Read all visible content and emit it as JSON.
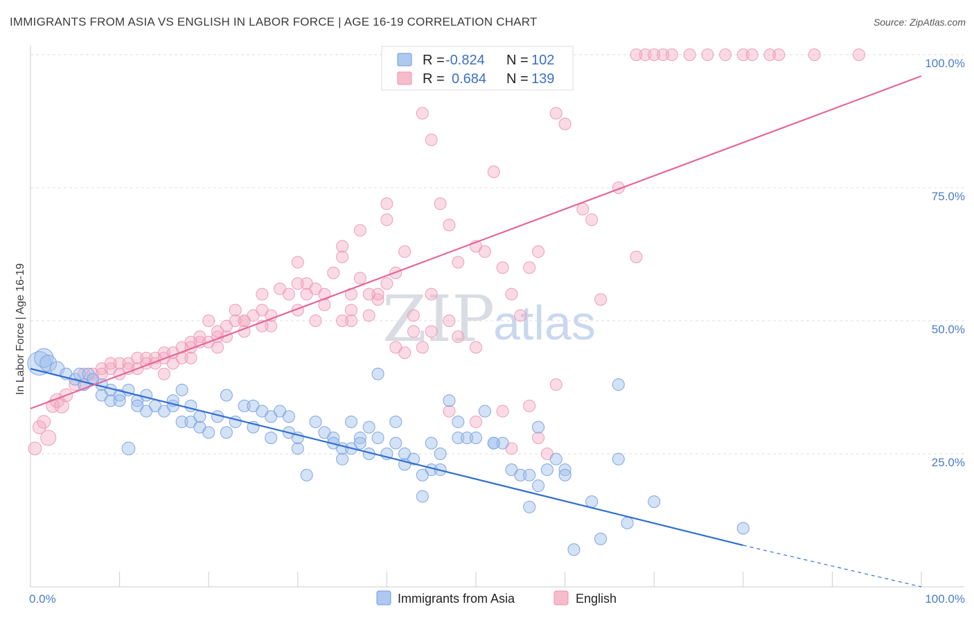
{
  "title": "IMMIGRANTS FROM ASIA VS ENGLISH IN LABOR FORCE | AGE 16-19 CORRELATION CHART",
  "source": "Source: ZipAtlas.com",
  "watermark": {
    "zip": "ZIP",
    "atlas": "atlas"
  },
  "legend": {
    "r_label": "R =",
    "n_label": "N =",
    "rows": [
      {
        "r": "-0.824",
        "n": "102",
        "color": "#aec8ef",
        "stroke": "#6d9ae0"
      },
      {
        "r": "0.684",
        "n": "139",
        "color": "#f7bccc",
        "stroke": "#ec8fab"
      }
    ]
  },
  "bottom_legend": [
    {
      "label": "Immigrants from Asia",
      "color": "#aec8ef",
      "stroke": "#6d9ae0"
    },
    {
      "label": "English",
      "color": "#f7bccc",
      "stroke": "#ec8fab"
    }
  ],
  "chart_data": {
    "type": "scatter",
    "xlabel": "",
    "ylabel": "In Labor Force | Age 16-19",
    "xlim": [
      0,
      100
    ],
    "ylim": [
      0,
      100
    ],
    "x_tick_labels": [
      "0.0%",
      "100.0%"
    ],
    "y_ticks": [
      25,
      50,
      75,
      100
    ],
    "y_tick_labels": [
      "25.0%",
      "50.0%",
      "75.0%",
      "100.0%"
    ],
    "grid": "horizontal dashed",
    "legend_position": "top-center",
    "series": [
      {
        "name": "Immigrants from Asia",
        "color": "#6d9ae0",
        "trend": {
          "x0": 0,
          "y0": 41.0,
          "x1": 80,
          "y1": 7.8,
          "dashed_to": 100,
          "dashed_y": 0
        },
        "points": [
          [
            1,
            42,
            2
          ],
          [
            1.5,
            43,
            1.6
          ],
          [
            2,
            42,
            1.4
          ],
          [
            3,
            41,
            1.2
          ],
          [
            4,
            40,
            1
          ],
          [
            5,
            39,
            1
          ],
          [
            6,
            38,
            1
          ],
          [
            5.5,
            40,
            1
          ],
          [
            6.5,
            40,
            1
          ],
          [
            7,
            39,
            1
          ],
          [
            8,
            38,
            1
          ],
          [
            8,
            36,
            1
          ],
          [
            9,
            35,
            1
          ],
          [
            10,
            36,
            1
          ],
          [
            10,
            35,
            1
          ],
          [
            11,
            37,
            1
          ],
          [
            12,
            35,
            1
          ],
          [
            12,
            34,
            1
          ],
          [
            13,
            33,
            1
          ],
          [
            14,
            34,
            1
          ],
          [
            11,
            26,
            1.1
          ],
          [
            15,
            33,
            1
          ],
          [
            16,
            34,
            1
          ],
          [
            16,
            35,
            1
          ],
          [
            17,
            37,
            1
          ],
          [
            17,
            31,
            1
          ],
          [
            18,
            34,
            1
          ],
          [
            18,
            31,
            1
          ],
          [
            19,
            30,
            1
          ],
          [
            19,
            32,
            1
          ],
          [
            20,
            29,
            1
          ],
          [
            21,
            32,
            1
          ],
          [
            22,
            36,
            1
          ],
          [
            22,
            29,
            1
          ],
          [
            23,
            31,
            1
          ],
          [
            24,
            34,
            1
          ],
          [
            25,
            34,
            1
          ],
          [
            25,
            30,
            1
          ],
          [
            26,
            33,
            1
          ],
          [
            27,
            28,
            1
          ],
          [
            27,
            32,
            1
          ],
          [
            28,
            33,
            1
          ],
          [
            29,
            32,
            1
          ],
          [
            29,
            29,
            1
          ],
          [
            30,
            26,
            1
          ],
          [
            30,
            28,
            1
          ],
          [
            31,
            21,
            1
          ],
          [
            32,
            31,
            1
          ],
          [
            33,
            29,
            1
          ],
          [
            34,
            28,
            1
          ],
          [
            34,
            27,
            1
          ],
          [
            35,
            24,
            1
          ],
          [
            35,
            26,
            1
          ],
          [
            36,
            31,
            1
          ],
          [
            37,
            28,
            1
          ],
          [
            37,
            27,
            1
          ],
          [
            38,
            25,
            1
          ],
          [
            38,
            30,
            1
          ],
          [
            39,
            28,
            1
          ],
          [
            39,
            40,
            1
          ],
          [
            40,
            25,
            1
          ],
          [
            41,
            27,
            1
          ],
          [
            42,
            25,
            1
          ],
          [
            42,
            23,
            1
          ],
          [
            43,
            24,
            1
          ],
          [
            44,
            17,
            1
          ],
          [
            45,
            22,
            1
          ],
          [
            46,
            22,
            1
          ],
          [
            46,
            25,
            1
          ],
          [
            47,
            35,
            1
          ],
          [
            48,
            28,
            1
          ],
          [
            48,
            31,
            1
          ],
          [
            49,
            28,
            1
          ],
          [
            50,
            28,
            1
          ],
          [
            51,
            33,
            1
          ],
          [
            52,
            27,
            1
          ],
          [
            53,
            27,
            1
          ],
          [
            54,
            22,
            1
          ],
          [
            55,
            21,
            1
          ],
          [
            56,
            21,
            1
          ],
          [
            56,
            15,
            1
          ],
          [
            57,
            19,
            1
          ],
          [
            57,
            30,
            1
          ],
          [
            58,
            22,
            1
          ],
          [
            59,
            24,
            1
          ],
          [
            60,
            22,
            1
          ],
          [
            60,
            21,
            1
          ],
          [
            61,
            7,
            1
          ],
          [
            63,
            16,
            1
          ],
          [
            64,
            9,
            1
          ],
          [
            66,
            24,
            1
          ],
          [
            67,
            12,
            1
          ],
          [
            70,
            16,
            1
          ],
          [
            66,
            38,
            1
          ],
          [
            80,
            11,
            1
          ],
          [
            44,
            21,
            1
          ],
          [
            45,
            27,
            1
          ],
          [
            36,
            26,
            1
          ],
          [
            41,
            31,
            1
          ],
          [
            52,
            27,
            1
          ],
          [
            9,
            37,
            1
          ],
          [
            13,
            36,
            1
          ]
        ]
      },
      {
        "name": "English",
        "color": "#ec8fab",
        "trend": {
          "x0": 0,
          "y0": 33.5,
          "x1": 100,
          "y1": 96.0
        },
        "points": [
          [
            0.5,
            26,
            1.1
          ],
          [
            1,
            30,
            1.1
          ],
          [
            1.5,
            31,
            1.1
          ],
          [
            2,
            28,
            1.3
          ],
          [
            2.5,
            34,
            1.1
          ],
          [
            3,
            35,
            1.2
          ],
          [
            3.5,
            34,
            1.2
          ],
          [
            4,
            36,
            1.1
          ],
          [
            5,
            38,
            1
          ],
          [
            6,
            38,
            1
          ],
          [
            6,
            40,
            1
          ],
          [
            7,
            40,
            1
          ],
          [
            7,
            39,
            1
          ],
          [
            8,
            41,
            1
          ],
          [
            8,
            40,
            1
          ],
          [
            9,
            41,
            1
          ],
          [
            10,
            42,
            1
          ],
          [
            10,
            40,
            1
          ],
          [
            11,
            42,
            1
          ],
          [
            11,
            41,
            1
          ],
          [
            12,
            43,
            1
          ],
          [
            13,
            42,
            1
          ],
          [
            13,
            43,
            1
          ],
          [
            14,
            42,
            1
          ],
          [
            14,
            43,
            1
          ],
          [
            15,
            44,
            1
          ],
          [
            15,
            43,
            1
          ],
          [
            16,
            42,
            1
          ],
          [
            16,
            44,
            1
          ],
          [
            17,
            43,
            1
          ],
          [
            17,
            45,
            1
          ],
          [
            18,
            45,
            1
          ],
          [
            18,
            43,
            1
          ],
          [
            19,
            46,
            1
          ],
          [
            19,
            47,
            1
          ],
          [
            20,
            46,
            1
          ],
          [
            20,
            50,
            1
          ],
          [
            21,
            45,
            1
          ],
          [
            21,
            47,
            1
          ],
          [
            22,
            49,
            1
          ],
          [
            22,
            47,
            1
          ],
          [
            23,
            50,
            1
          ],
          [
            23,
            52,
            1
          ],
          [
            24,
            50,
            1
          ],
          [
            24,
            48,
            1
          ],
          [
            25,
            51,
            1
          ],
          [
            26,
            52,
            1
          ],
          [
            26,
            55,
            1
          ],
          [
            27,
            49,
            1
          ],
          [
            27,
            51,
            1
          ],
          [
            28,
            56,
            1
          ],
          [
            29,
            55,
            1
          ],
          [
            30,
            57,
            1
          ],
          [
            30,
            61,
            1
          ],
          [
            31,
            55,
            1
          ],
          [
            31,
            57,
            1
          ],
          [
            32,
            56,
            1
          ],
          [
            32,
            50,
            1
          ],
          [
            33,
            55,
            1
          ],
          [
            34,
            59,
            1
          ],
          [
            35,
            62,
            1
          ],
          [
            35,
            64,
            1
          ],
          [
            36,
            52,
            1
          ],
          [
            37,
            58,
            1
          ],
          [
            37,
            67,
            1
          ],
          [
            38,
            51,
            1
          ],
          [
            39,
            54,
            1
          ],
          [
            39,
            55,
            1
          ],
          [
            40,
            72,
            1
          ],
          [
            40,
            69,
            1
          ],
          [
            41,
            45,
            1
          ],
          [
            41,
            59,
            1
          ],
          [
            42,
            44,
            1
          ],
          [
            43,
            51,
            1
          ],
          [
            44,
            45,
            1
          ],
          [
            44,
            89,
            1
          ],
          [
            45,
            84,
            1
          ],
          [
            46,
            72,
            1
          ],
          [
            47,
            68,
            1
          ],
          [
            48,
            61,
            1
          ],
          [
            48,
            47,
            1
          ],
          [
            50,
            64,
            1
          ],
          [
            51,
            63,
            1
          ],
          [
            52,
            78,
            1
          ],
          [
            53,
            60,
            1
          ],
          [
            54,
            55,
            1
          ],
          [
            55,
            51,
            1
          ],
          [
            56,
            60,
            1
          ],
          [
            57,
            63,
            1
          ],
          [
            59,
            95,
            1
          ],
          [
            59,
            89,
            1
          ],
          [
            60,
            87,
            1
          ],
          [
            62,
            71,
            1
          ],
          [
            63,
            69,
            1
          ],
          [
            64,
            54,
            1
          ],
          [
            66,
            75,
            1
          ],
          [
            68,
            62,
            1
          ],
          [
            68,
            100,
            1
          ],
          [
            69,
            100,
            1
          ],
          [
            70,
            100,
            1
          ],
          [
            71,
            100,
            1
          ],
          [
            72,
            100,
            1
          ],
          [
            74,
            100,
            1
          ],
          [
            76,
            100,
            1
          ],
          [
            78,
            100,
            1
          ],
          [
            80,
            100,
            1
          ],
          [
            81,
            100,
            1
          ],
          [
            83,
            100,
            1
          ],
          [
            84,
            100,
            1
          ],
          [
            88,
            100,
            1
          ],
          [
            93,
            100,
            1
          ],
          [
            47,
            33,
            1
          ],
          [
            50,
            31,
            1
          ],
          [
            53,
            33,
            1
          ],
          [
            54,
            26,
            1
          ],
          [
            57,
            28,
            1
          ],
          [
            58,
            25,
            1
          ],
          [
            59,
            38,
            1
          ],
          [
            56,
            34,
            1
          ],
          [
            36,
            50,
            1
          ],
          [
            47,
            50,
            1
          ],
          [
            15,
            40,
            1
          ],
          [
            24,
            50,
            1
          ],
          [
            30,
            52,
            1
          ],
          [
            36,
            55,
            1
          ],
          [
            42,
            63,
            1
          ],
          [
            38,
            55,
            1
          ],
          [
            45,
            48,
            1
          ],
          [
            50,
            45,
            1
          ],
          [
            43,
            48,
            1
          ],
          [
            9,
            42,
            1
          ],
          [
            12,
            41,
            1
          ],
          [
            18,
            46,
            1
          ],
          [
            21,
            48,
            1
          ],
          [
            26,
            49,
            1
          ],
          [
            33,
            53,
            1
          ],
          [
            40,
            57,
            1
          ],
          [
            45,
            55,
            1
          ],
          [
            35,
            50,
            1
          ]
        ]
      }
    ]
  }
}
